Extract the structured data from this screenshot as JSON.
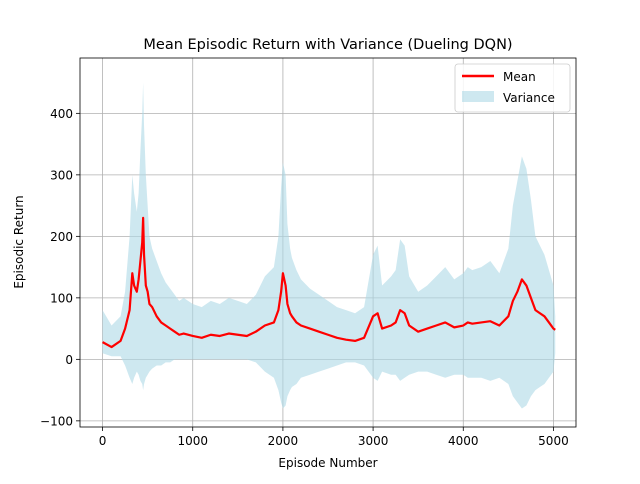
{
  "chart_data": {
    "type": "line",
    "title": "Mean Episodic Return with Variance (Dueling DQN)",
    "xlabel": "Episode Number",
    "ylabel": "Episodic Return",
    "xlim": [
      -250,
      5250
    ],
    "ylim": [
      -110,
      490
    ],
    "xticks": [
      0,
      1000,
      2000,
      3000,
      4000,
      5000
    ],
    "xtick_labels": [
      "0",
      "1000",
      "2000",
      "3000",
      "4000",
      "5000"
    ],
    "yticks": [
      -100,
      0,
      100,
      200,
      300,
      400
    ],
    "ytick_labels": [
      "−100",
      "0",
      "100",
      "200",
      "300",
      "400"
    ],
    "grid": true,
    "legend_position": "top-right",
    "colors": {
      "mean": "#ff0000",
      "variance": "#add8e6"
    },
    "series": [
      {
        "name": "Mean",
        "x": [
          0,
          100,
          200,
          250,
          300,
          330,
          350,
          380,
          400,
          420,
          440,
          450,
          460,
          480,
          500,
          520,
          550,
          600,
          650,
          700,
          750,
          800,
          850,
          900,
          1000,
          1100,
          1200,
          1300,
          1400,
          1500,
          1600,
          1700,
          1800,
          1900,
          1950,
          1980,
          2000,
          2030,
          2050,
          2080,
          2100,
          2150,
          2200,
          2300,
          2400,
          2500,
          2600,
          2700,
          2800,
          2900,
          3000,
          3050,
          3100,
          3200,
          3250,
          3300,
          3350,
          3400,
          3500,
          3600,
          3700,
          3800,
          3900,
          4000,
          4050,
          4100,
          4200,
          4300,
          4400,
          4500,
          4550,
          4600,
          4650,
          4700,
          4750,
          4800,
          4850,
          4900,
          4950,
          5000,
          5020
        ],
        "values": [
          28,
          20,
          30,
          50,
          80,
          140,
          120,
          110,
          130,
          160,
          190,
          230,
          170,
          120,
          110,
          90,
          85,
          70,
          60,
          55,
          50,
          45,
          40,
          42,
          38,
          35,
          40,
          38,
          42,
          40,
          38,
          45,
          55,
          60,
          80,
          110,
          140,
          120,
          90,
          75,
          70,
          60,
          55,
          50,
          45,
          40,
          35,
          32,
          30,
          35,
          70,
          75,
          50,
          55,
          60,
          80,
          75,
          55,
          45,
          50,
          55,
          60,
          52,
          55,
          60,
          58,
          60,
          62,
          55,
          70,
          95,
          110,
          130,
          120,
          100,
          80,
          75,
          70,
          60,
          50,
          48
        ],
        "upper": [
          80,
          55,
          70,
          110,
          200,
          300,
          270,
          240,
          270,
          340,
          400,
          450,
          380,
          300,
          250,
          200,
          180,
          160,
          140,
          125,
          115,
          105,
          95,
          100,
          90,
          85,
          95,
          90,
          100,
          95,
          90,
          105,
          135,
          150,
          200,
          280,
          320,
          300,
          220,
          180,
          165,
          145,
          130,
          115,
          105,
          95,
          85,
          80,
          75,
          85,
          170,
          185,
          120,
          135,
          145,
          195,
          185,
          135,
          110,
          120,
          135,
          150,
          130,
          140,
          150,
          145,
          150,
          160,
          140,
          180,
          250,
          290,
          330,
          310,
          260,
          200,
          185,
          170,
          145,
          120,
          70
        ],
        "lower": [
          10,
          5,
          5,
          -10,
          -30,
          -40,
          -30,
          -20,
          -25,
          -35,
          -40,
          -50,
          -40,
          -30,
          -25,
          -20,
          -15,
          -10,
          -10,
          -5,
          -5,
          0,
          0,
          0,
          0,
          0,
          0,
          0,
          0,
          0,
          0,
          -5,
          -20,
          -30,
          -50,
          -70,
          -80,
          -75,
          -60,
          -50,
          -45,
          -40,
          -30,
          -25,
          -20,
          -15,
          -10,
          -5,
          -5,
          -10,
          -30,
          -35,
          -20,
          -25,
          -25,
          -35,
          -30,
          -25,
          -20,
          -20,
          -25,
          -30,
          -25,
          -25,
          -30,
          -30,
          -30,
          -35,
          -30,
          -40,
          -60,
          -70,
          -80,
          -75,
          -60,
          -50,
          -45,
          -40,
          -30,
          -20,
          10
        ]
      },
      {
        "name": "Variance"
      }
    ]
  }
}
